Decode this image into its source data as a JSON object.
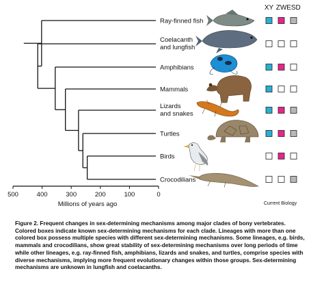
{
  "columns": [
    "XY",
    "ZW",
    "ESD"
  ],
  "clades": [
    {
      "label": "Ray-finned fish",
      "icon": "ray-finned-fish-image",
      "boxes": [
        true,
        true,
        true
      ]
    },
    {
      "label": "Coelacanth\nand lungfish",
      "icon": "coelacanth-image",
      "boxes": [
        false,
        false,
        false
      ]
    },
    {
      "label": "Amphibians",
      "icon": "frog-image",
      "boxes": [
        true,
        true,
        false
      ]
    },
    {
      "label": "Mammals",
      "icon": "bear-image",
      "boxes": [
        true,
        false,
        false
      ]
    },
    {
      "label": "Lizards\nand snakes",
      "icon": "lizard-image",
      "boxes": [
        true,
        true,
        true
      ]
    },
    {
      "label": "Turtles",
      "icon": "tortoise-image",
      "boxes": [
        true,
        true,
        true
      ]
    },
    {
      "label": "Birds",
      "icon": "gull-image",
      "boxes": [
        false,
        true,
        false
      ]
    },
    {
      "label": "Crocodilians",
      "icon": "crocodile-image",
      "boxes": [
        false,
        false,
        true
      ]
    }
  ],
  "box_colors": {
    "XY": "#2aaed1",
    "ZW": "#e6268a",
    "ESD": "#b7b7b7"
  },
  "axis": {
    "label": "Millions of years ago",
    "ticks": [
      500,
      400,
      300,
      200,
      100,
      0
    ]
  },
  "divergence_times_mya": {
    "root": 430,
    "coelacanth_split": 415,
    "amphibians_split": 355,
    "mammals_split": 320,
    "lizards_split": 275,
    "turtles_split": 260,
    "birds_croc_split": 245
  },
  "credit": "Current Biology",
  "caption": {
    "title": "Figure 2. Frequent changes in sex-determining mechanisms among major clades of bony vertebrates.",
    "body": "Colored boxes indicate known sex-determining mechanisms for each clade. Lineages with more than one colored box possess multiple species with different sex-determining mechanisms. Some lineages, e.g. birds, mammals and crocodilians, show great stability of sex-determining mechanisms over long periods of time while other lineages, e.g. ray-finned fish, amphibians, lizards and snakes, and turtles, comprise species with diverse mechanisms, implying more frequent evolutionary changes within those groups. Sex-determining mechanisms are unknown in lungfish and coelacanths."
  }
}
